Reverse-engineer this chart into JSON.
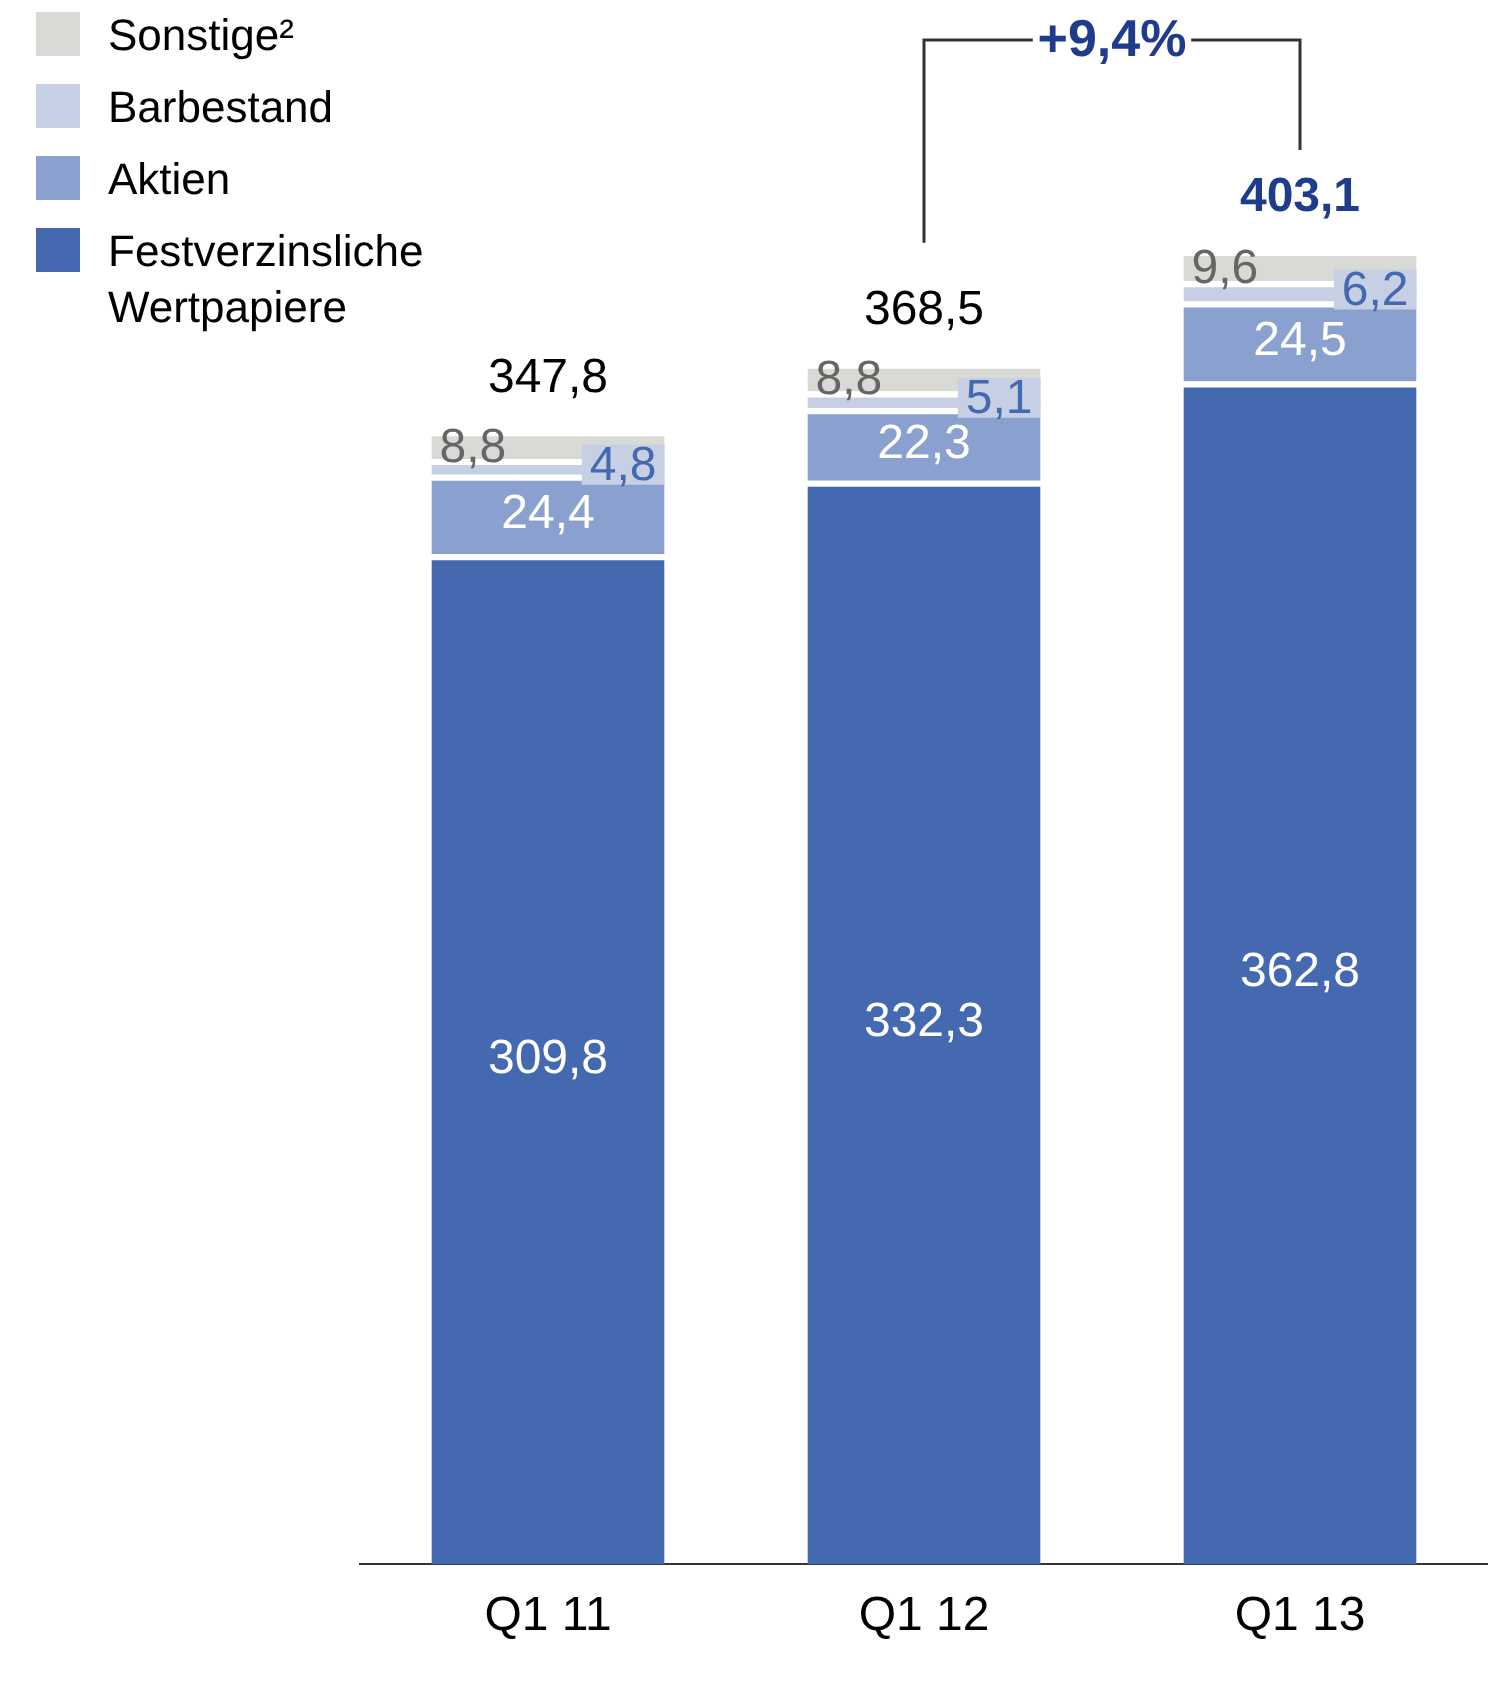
{
  "chart_data": {
    "type": "bar",
    "stacked": true,
    "categories": [
      "Q1 11",
      "Q1 12",
      "Q1 13"
    ],
    "series": [
      {
        "name": "Festverzinsliche Wertpapiere",
        "color": "#4469b1",
        "values": [
          309.8,
          332.3,
          362.8
        ],
        "value_labels": [
          "309,8",
          "332,3",
          "362,8"
        ]
      },
      {
        "name": "Aktien",
        "color": "#8aa1cf",
        "values": [
          24.4,
          22.3,
          24.5
        ],
        "value_labels": [
          "24,4",
          "22,3",
          "24,5"
        ]
      },
      {
        "name": "Barbestand",
        "color": "#c7cfe4",
        "values": [
          4.8,
          5.1,
          6.2
        ],
        "value_labels": [
          "4,8",
          "5,1",
          "6,2"
        ]
      },
      {
        "name": "Sonstige²",
        "color": "#d9d9d6",
        "values": [
          8.8,
          8.8,
          9.6
        ],
        "value_labels": [
          "8,8",
          "8,8",
          "9,6"
        ]
      }
    ],
    "totals": [
      "347,8",
      "368,5",
      "403,1"
    ],
    "annotations": [
      "+9,4%"
    ],
    "grid": false,
    "legend": "top left"
  }
}
